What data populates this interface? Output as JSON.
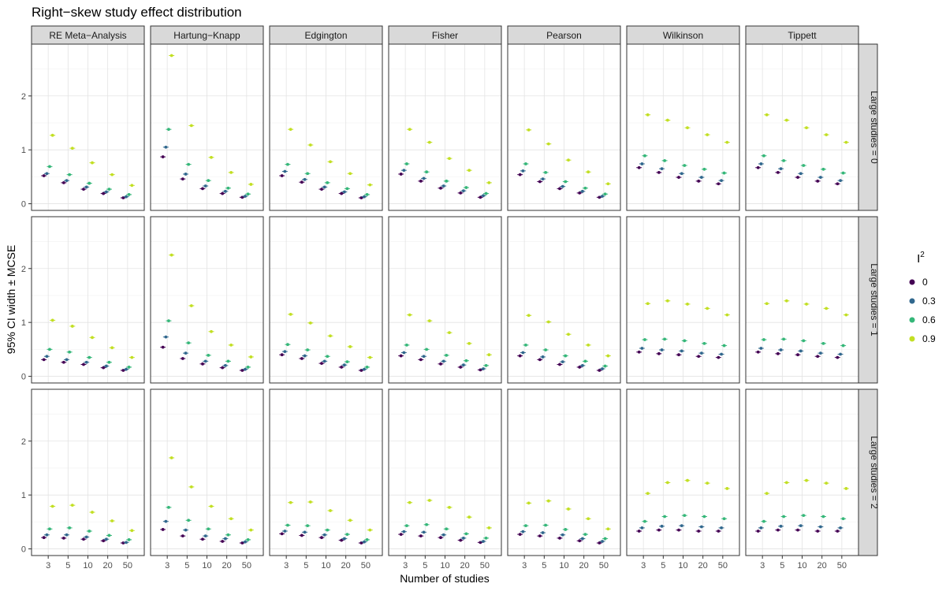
{
  "title": "Right−skew study effect distribution",
  "xlabel": "Number of studies",
  "ylabel": "95% CI width ± MCSE",
  "legend": {
    "title_base": "I",
    "title_sup": "2",
    "entries": [
      "0",
      "0.3",
      "0.6",
      "0.9"
    ],
    "colors": [
      "#440154",
      "#31688e",
      "#35b779",
      "#c2df23"
    ]
  },
  "chart_data": {
    "type": "scatter",
    "title": "Right−skew study effect distribution",
    "xlabel": "Number of studies",
    "ylabel": "95% CI width ± MCSE",
    "x_categories": [
      "3",
      "5",
      "10",
      "20",
      "50"
    ],
    "y_ticks": [
      "0",
      "1",
      "2"
    ],
    "ylim": [
      0,
      2.9
    ],
    "grid": true,
    "legend_position": "right",
    "columns": [
      "RE Meta−Analysis",
      "Hartung−Knapp",
      "Edgington",
      "Fisher",
      "Pearson",
      "Wilkinson",
      "Tippett"
    ],
    "rows": [
      "Large studies = 0",
      "Large studies = 1",
      "Large studies = 2"
    ],
    "series_names": [
      "0",
      "0.3",
      "0.6",
      "0.9"
    ],
    "panels": [
      [
        [
          [
            0.52,
            0.56,
            0.69,
            1.27
          ],
          [
            0.39,
            0.43,
            0.54,
            1.03
          ],
          [
            0.27,
            0.31,
            0.38,
            0.76
          ],
          [
            0.19,
            0.22,
            0.27,
            0.54
          ],
          [
            0.11,
            0.13,
            0.17,
            0.34
          ]
        ],
        [
          [
            0.87,
            1.05,
            1.38,
            2.75
          ],
          [
            0.46,
            0.55,
            0.73,
            1.45
          ],
          [
            0.28,
            0.33,
            0.43,
            0.86
          ],
          [
            0.19,
            0.23,
            0.29,
            0.58
          ],
          [
            0.12,
            0.14,
            0.18,
            0.36
          ]
        ],
        [
          [
            0.52,
            0.6,
            0.73,
            1.38
          ],
          [
            0.4,
            0.45,
            0.56,
            1.09
          ],
          [
            0.27,
            0.31,
            0.39,
            0.78
          ],
          [
            0.19,
            0.22,
            0.28,
            0.56
          ],
          [
            0.11,
            0.13,
            0.17,
            0.35
          ]
        ],
        [
          [
            0.55,
            0.62,
            0.74,
            1.38
          ],
          [
            0.42,
            0.47,
            0.59,
            1.14
          ],
          [
            0.29,
            0.33,
            0.42,
            0.84
          ],
          [
            0.2,
            0.24,
            0.3,
            0.62
          ],
          [
            0.12,
            0.15,
            0.19,
            0.39
          ]
        ],
        [
          [
            0.54,
            0.61,
            0.74,
            1.37
          ],
          [
            0.41,
            0.46,
            0.58,
            1.11
          ],
          [
            0.28,
            0.32,
            0.41,
            0.81
          ],
          [
            0.2,
            0.23,
            0.29,
            0.59
          ],
          [
            0.12,
            0.14,
            0.18,
            0.37
          ]
        ],
        [
          [
            0.67,
            0.74,
            0.89,
            1.65
          ],
          [
            0.58,
            0.65,
            0.8,
            1.55
          ],
          [
            0.49,
            0.56,
            0.71,
            1.41
          ],
          [
            0.42,
            0.49,
            0.64,
            1.28
          ],
          [
            0.37,
            0.43,
            0.57,
            1.14
          ]
        ],
        [
          [
            0.67,
            0.74,
            0.89,
            1.65
          ],
          [
            0.58,
            0.65,
            0.8,
            1.55
          ],
          [
            0.49,
            0.56,
            0.71,
            1.41
          ],
          [
            0.42,
            0.49,
            0.64,
            1.28
          ],
          [
            0.37,
            0.43,
            0.57,
            1.14
          ]
        ]
      ],
      [
        [
          [
            0.31,
            0.37,
            0.5,
            1.04
          ],
          [
            0.26,
            0.31,
            0.45,
            0.93
          ],
          [
            0.22,
            0.26,
            0.35,
            0.72
          ],
          [
            0.16,
            0.19,
            0.26,
            0.53
          ],
          [
            0.11,
            0.13,
            0.17,
            0.35
          ]
        ],
        [
          [
            0.54,
            0.73,
            1.03,
            2.25
          ],
          [
            0.33,
            0.43,
            0.62,
            1.31
          ],
          [
            0.23,
            0.28,
            0.39,
            0.83
          ],
          [
            0.16,
            0.2,
            0.28,
            0.58
          ],
          [
            0.11,
            0.13,
            0.17,
            0.36
          ]
        ],
        [
          [
            0.4,
            0.46,
            0.59,
            1.15
          ],
          [
            0.33,
            0.38,
            0.49,
            0.99
          ],
          [
            0.24,
            0.28,
            0.37,
            0.75
          ],
          [
            0.17,
            0.21,
            0.27,
            0.55
          ],
          [
            0.11,
            0.13,
            0.17,
            0.35
          ]
        ],
        [
          [
            0.38,
            0.44,
            0.58,
            1.14
          ],
          [
            0.31,
            0.37,
            0.5,
            1.03
          ],
          [
            0.23,
            0.28,
            0.39,
            0.81
          ],
          [
            0.17,
            0.21,
            0.29,
            0.61
          ],
          [
            0.12,
            0.14,
            0.2,
            0.4
          ]
        ],
        [
          [
            0.38,
            0.44,
            0.58,
            1.13
          ],
          [
            0.31,
            0.36,
            0.49,
            1.01
          ],
          [
            0.22,
            0.27,
            0.38,
            0.78
          ],
          [
            0.17,
            0.2,
            0.28,
            0.58
          ],
          [
            0.11,
            0.14,
            0.19,
            0.38
          ]
        ],
        [
          [
            0.45,
            0.52,
            0.68,
            1.35
          ],
          [
            0.42,
            0.49,
            0.69,
            1.4
          ],
          [
            0.4,
            0.47,
            0.66,
            1.34
          ],
          [
            0.37,
            0.43,
            0.61,
            1.26
          ],
          [
            0.35,
            0.41,
            0.57,
            1.14
          ]
        ],
        [
          [
            0.45,
            0.52,
            0.68,
            1.35
          ],
          [
            0.42,
            0.49,
            0.69,
            1.4
          ],
          [
            0.4,
            0.47,
            0.66,
            1.34
          ],
          [
            0.37,
            0.43,
            0.61,
            1.26
          ],
          [
            0.35,
            0.41,
            0.57,
            1.14
          ]
        ]
      ],
      [
        [
          [
            0.21,
            0.26,
            0.37,
            0.79
          ],
          [
            0.2,
            0.26,
            0.39,
            0.81
          ],
          [
            0.18,
            0.22,
            0.33,
            0.68
          ],
          [
            0.15,
            0.18,
            0.25,
            0.52
          ],
          [
            0.11,
            0.12,
            0.17,
            0.34
          ]
        ],
        [
          [
            0.36,
            0.51,
            0.77,
            1.69
          ],
          [
            0.24,
            0.35,
            0.53,
            1.15
          ],
          [
            0.18,
            0.24,
            0.37,
            0.79
          ],
          [
            0.14,
            0.19,
            0.26,
            0.56
          ],
          [
            0.11,
            0.13,
            0.17,
            0.35
          ]
        ],
        [
          [
            0.28,
            0.33,
            0.44,
            0.86
          ],
          [
            0.25,
            0.31,
            0.43,
            0.87
          ],
          [
            0.21,
            0.26,
            0.35,
            0.71
          ],
          [
            0.16,
            0.19,
            0.27,
            0.53
          ],
          [
            0.11,
            0.13,
            0.17,
            0.35
          ]
        ],
        [
          [
            0.27,
            0.32,
            0.43,
            0.86
          ],
          [
            0.24,
            0.31,
            0.45,
            0.9
          ],
          [
            0.21,
            0.26,
            0.37,
            0.77
          ],
          [
            0.16,
            0.2,
            0.28,
            0.59
          ],
          [
            0.12,
            0.14,
            0.2,
            0.39
          ]
        ],
        [
          [
            0.27,
            0.32,
            0.43,
            0.85
          ],
          [
            0.24,
            0.3,
            0.44,
            0.89
          ],
          [
            0.2,
            0.26,
            0.36,
            0.74
          ],
          [
            0.15,
            0.19,
            0.27,
            0.56
          ],
          [
            0.11,
            0.14,
            0.19,
            0.37
          ]
        ],
        [
          [
            0.33,
            0.39,
            0.51,
            1.03
          ],
          [
            0.35,
            0.42,
            0.6,
            1.23
          ],
          [
            0.35,
            0.43,
            0.62,
            1.27
          ],
          [
            0.33,
            0.41,
            0.6,
            1.22
          ],
          [
            0.33,
            0.39,
            0.56,
            1.12
          ]
        ],
        [
          [
            0.33,
            0.39,
            0.51,
            1.03
          ],
          [
            0.35,
            0.42,
            0.6,
            1.23
          ],
          [
            0.35,
            0.43,
            0.62,
            1.27
          ],
          [
            0.33,
            0.41,
            0.6,
            1.22
          ],
          [
            0.33,
            0.39,
            0.56,
            1.12
          ]
        ]
      ]
    ]
  }
}
